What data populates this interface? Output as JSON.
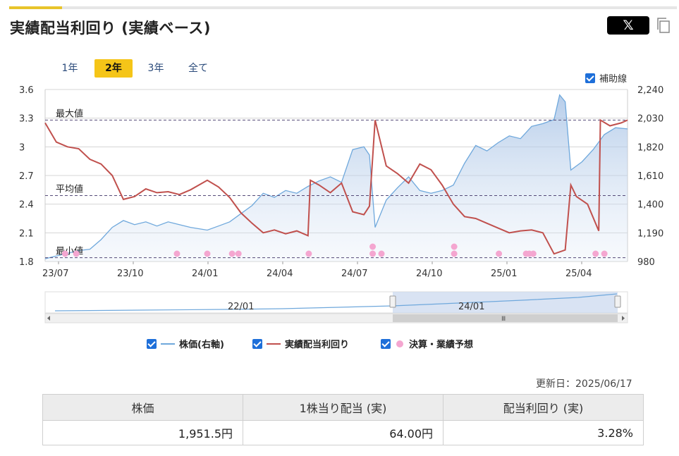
{
  "header": {
    "title": "実績配当利回り (実績ベース)",
    "share_label": "𝕏"
  },
  "period_tabs": [
    {
      "label": "1年",
      "active": false
    },
    {
      "label": "2年",
      "active": true
    },
    {
      "label": "3年",
      "active": false
    },
    {
      "label": "全て",
      "active": false
    }
  ],
  "aux_line_toggle": {
    "label": "補助線",
    "checked": true
  },
  "legend": [
    {
      "label": "株価(右軸)",
      "checked": true,
      "color": "#6fa8dc"
    },
    {
      "label": "実績配当利回り",
      "checked": true,
      "color": "#c0504d"
    },
    {
      "label": "決算・業績予想",
      "checked": true,
      "color": "#f4a6d0"
    }
  ],
  "updated": "更新日：2025/06/17",
  "summary": {
    "headers": [
      "株価",
      "1株当り配当 (実)",
      "配当利回り (実)"
    ],
    "values": [
      "1,951.5円",
      "64.00円",
      "3.28%"
    ]
  },
  "navigator": {
    "labels": [
      "22/01",
      "24/01"
    ],
    "scroll_grip": "Ⅲ"
  },
  "chart_data": {
    "type": "line",
    "x_tick_labels": [
      "23/07",
      "23/10",
      "24/01",
      "24/04",
      "24/07",
      "24/10",
      "25/01",
      "25/04"
    ],
    "x_range": [
      "2023-06-19",
      "2025-06-17"
    ],
    "y_left": {
      "ticks": [
        "1.8",
        "2.1",
        "2.4",
        "2.7",
        "3",
        "3.3",
        "3.6"
      ],
      "range": [
        1.8,
        3.6
      ]
    },
    "y_right": {
      "ticks": [
        "980",
        "1,190",
        "1,400",
        "1,610",
        "1,820",
        "2,030",
        "2,240"
      ],
      "range": [
        980,
        2240
      ]
    },
    "reference_lines": [
      {
        "label": "最大値",
        "value": 3.28
      },
      {
        "label": "平均値",
        "value": 2.49
      },
      {
        "label": "最小値",
        "value": 1.84
      }
    ],
    "series": [
      {
        "name": "株価(右軸)",
        "axis": "right",
        "color": "#6fa8dc",
        "points": [
          [
            "2023-06-19",
            1000
          ],
          [
            "2023-07-10",
            1030
          ],
          [
            "2023-07-31",
            1060
          ],
          [
            "2023-08-14",
            1070
          ],
          [
            "2023-08-28",
            1140
          ],
          [
            "2023-09-11",
            1230
          ],
          [
            "2023-09-25",
            1280
          ],
          [
            "2023-10-09",
            1250
          ],
          [
            "2023-10-23",
            1270
          ],
          [
            "2023-11-06",
            1240
          ],
          [
            "2023-11-20",
            1270
          ],
          [
            "2023-12-04",
            1250
          ],
          [
            "2023-12-18",
            1230
          ],
          [
            "2024-01-08",
            1210
          ],
          [
            "2024-01-22",
            1240
          ],
          [
            "2024-02-05",
            1270
          ],
          [
            "2024-02-19",
            1330
          ],
          [
            "2024-03-04",
            1390
          ],
          [
            "2024-03-18",
            1480
          ],
          [
            "2024-04-01",
            1450
          ],
          [
            "2024-04-15",
            1500
          ],
          [
            "2024-04-29",
            1480
          ],
          [
            "2024-05-13",
            1530
          ],
          [
            "2024-05-27",
            1570
          ],
          [
            "2024-06-10",
            1600
          ],
          [
            "2024-06-24",
            1560
          ],
          [
            "2024-07-08",
            1800
          ],
          [
            "2024-07-22",
            1820
          ],
          [
            "2024-07-29",
            1760
          ],
          [
            "2024-08-05",
            1230
          ],
          [
            "2024-08-19",
            1430
          ],
          [
            "2024-09-02",
            1520
          ],
          [
            "2024-09-16",
            1600
          ],
          [
            "2024-09-30",
            1500
          ],
          [
            "2024-10-14",
            1480
          ],
          [
            "2024-10-28",
            1500
          ],
          [
            "2024-11-11",
            1540
          ],
          [
            "2024-11-25",
            1700
          ],
          [
            "2024-12-09",
            1830
          ],
          [
            "2024-12-23",
            1790
          ],
          [
            "2025-01-06",
            1850
          ],
          [
            "2025-01-20",
            1900
          ],
          [
            "2025-02-03",
            1880
          ],
          [
            "2025-02-17",
            1970
          ],
          [
            "2025-03-03",
            1990
          ],
          [
            "2025-03-17",
            2020
          ],
          [
            "2025-03-24",
            2200
          ],
          [
            "2025-03-31",
            2150
          ],
          [
            "2025-04-07",
            1650
          ],
          [
            "2025-04-21",
            1710
          ],
          [
            "2025-05-05",
            1800
          ],
          [
            "2025-05-19",
            1910
          ],
          [
            "2025-06-02",
            1960
          ],
          [
            "2025-06-17",
            1951.5
          ]
        ]
      },
      {
        "name": "実績配当利回り",
        "axis": "left",
        "color": "#c0504d",
        "points": [
          [
            "2023-06-19",
            3.25
          ],
          [
            "2023-07-03",
            3.05
          ],
          [
            "2023-07-17",
            3.0
          ],
          [
            "2023-07-31",
            2.98
          ],
          [
            "2023-08-14",
            2.87
          ],
          [
            "2023-08-28",
            2.82
          ],
          [
            "2023-09-11",
            2.7
          ],
          [
            "2023-09-25",
            2.45
          ],
          [
            "2023-10-09",
            2.48
          ],
          [
            "2023-10-23",
            2.56
          ],
          [
            "2023-11-06",
            2.52
          ],
          [
            "2023-11-20",
            2.53
          ],
          [
            "2023-12-04",
            2.5
          ],
          [
            "2023-12-18",
            2.55
          ],
          [
            "2024-01-08",
            2.65
          ],
          [
            "2024-01-22",
            2.58
          ],
          [
            "2024-02-05",
            2.47
          ],
          [
            "2024-02-19",
            2.31
          ],
          [
            "2024-03-04",
            2.2
          ],
          [
            "2024-03-18",
            2.1
          ],
          [
            "2024-04-01",
            2.13
          ],
          [
            "2024-04-15",
            2.09
          ],
          [
            "2024-04-29",
            2.12
          ],
          [
            "2024-05-13",
            2.07
          ],
          [
            "2024-05-16",
            2.65
          ],
          [
            "2024-05-27",
            2.6
          ],
          [
            "2024-06-10",
            2.52
          ],
          [
            "2024-06-24",
            2.62
          ],
          [
            "2024-07-08",
            2.32
          ],
          [
            "2024-07-22",
            2.29
          ],
          [
            "2024-07-29",
            2.38
          ],
          [
            "2024-08-05",
            3.28
          ],
          [
            "2024-08-19",
            2.8
          ],
          [
            "2024-09-02",
            2.72
          ],
          [
            "2024-09-16",
            2.62
          ],
          [
            "2024-09-30",
            2.82
          ],
          [
            "2024-10-14",
            2.76
          ],
          [
            "2024-10-28",
            2.6
          ],
          [
            "2024-11-11",
            2.4
          ],
          [
            "2024-11-25",
            2.27
          ],
          [
            "2024-12-09",
            2.25
          ],
          [
            "2024-12-23",
            2.2
          ],
          [
            "2025-01-06",
            2.15
          ],
          [
            "2025-01-20",
            2.1
          ],
          [
            "2025-02-03",
            2.12
          ],
          [
            "2025-02-17",
            2.13
          ],
          [
            "2025-03-03",
            2.1
          ],
          [
            "2025-03-17",
            1.88
          ],
          [
            "2025-03-31",
            1.92
          ],
          [
            "2025-04-07",
            2.6
          ],
          [
            "2025-04-14",
            2.48
          ],
          [
            "2025-04-28",
            2.4
          ],
          [
            "2025-05-12",
            2.12
          ],
          [
            "2025-05-14",
            3.28
          ],
          [
            "2025-05-26",
            3.22
          ],
          [
            "2025-06-09",
            3.25
          ],
          [
            "2025-06-17",
            3.28
          ]
        ]
      }
    ],
    "events": [
      {
        "date": "2023-07-14",
        "stack": 1
      },
      {
        "date": "2023-07-28",
        "stack": 1
      },
      {
        "date": "2023-12-01",
        "stack": 1
      },
      {
        "date": "2024-01-08",
        "stack": 1
      },
      {
        "date": "2024-02-08",
        "stack": 1
      },
      {
        "date": "2024-02-16",
        "stack": 1
      },
      {
        "date": "2024-05-14",
        "stack": 1
      },
      {
        "date": "2024-08-02",
        "stack": 2
      },
      {
        "date": "2024-08-13",
        "stack": 1
      },
      {
        "date": "2024-11-12",
        "stack": 2
      },
      {
        "date": "2025-01-07",
        "stack": 1
      },
      {
        "date": "2025-02-10",
        "stack": 1
      },
      {
        "date": "2025-02-14",
        "stack": 1
      },
      {
        "date": "2025-02-19",
        "stack": 1
      },
      {
        "date": "2025-05-08",
        "stack": 1
      },
      {
        "date": "2025-05-19",
        "stack": 1
      }
    ]
  }
}
